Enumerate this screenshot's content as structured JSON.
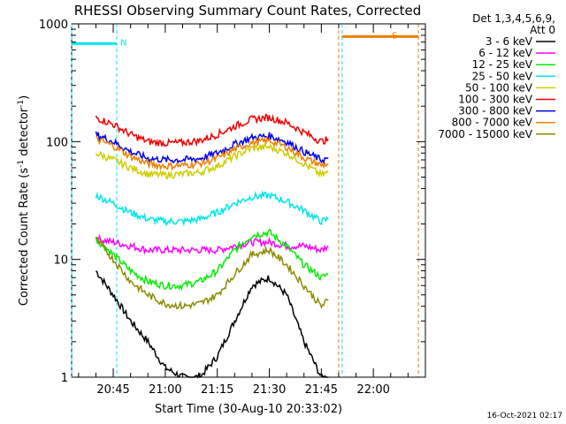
{
  "chart_data": {
    "type": "line",
    "title": "RHESSI Observing Summary Count Rates, Corrected",
    "xlabel": "Start Time (30-Aug-10 20:33:02)",
    "ylabel_main": "Corrected Count Rate (s",
    "ylabel_sup1": "-1",
    "ylabel_mid": " detector",
    "ylabel_sup2": "-1",
    "ylabel_end": ")",
    "yscale": "log",
    "ylim": [
      1,
      1000
    ],
    "xlim": [
      "20:33",
      "22:15"
    ],
    "x_ticks": [
      "20:45",
      "21:00",
      "21:15",
      "21:30",
      "21:45",
      "22:00"
    ],
    "y_ticks": [
      "1",
      "10",
      "100",
      "1000"
    ],
    "legend_header": [
      "Det 1,3,4,5,6,9,",
      "Att 0"
    ],
    "legend_position": "right",
    "timestamp": "16-Oct-2021 02:17",
    "flags": [
      {
        "label": "N",
        "start": "20:33",
        "end": "20:46",
        "color": "#00e5ee",
        "level": 680
      },
      {
        "label": "S",
        "start": "21:51",
        "end": "22:13",
        "color": "#ee7f00",
        "level": 780
      }
    ],
    "flag_lines": [
      {
        "time": "20:33",
        "color": "#00e5ee"
      },
      {
        "time": "20:46",
        "color": "#00e5ee"
      },
      {
        "time": "21:51",
        "color": "#00e5ee"
      },
      {
        "time": "21:50",
        "color": "#ee7f00"
      },
      {
        "time": "22:13",
        "color": "#ee7f00"
      }
    ],
    "series": [
      {
        "name": "3 - 6 keV",
        "color": "#000000",
        "x": [
          "20:40",
          "20:45",
          "20:50",
          "20:55",
          "21:00",
          "21:05",
          "21:10",
          "21:15",
          "21:20",
          "21:25",
          "21:30",
          "21:35",
          "21:40",
          "21:45",
          "21:47"
        ],
        "values": [
          8,
          5,
          3,
          2,
          1.2,
          1,
          1,
          1.5,
          3,
          6,
          7,
          5,
          2,
          1,
          1
        ]
      },
      {
        "name": "6 - 12 keV",
        "color": "#ff00ff",
        "x": [
          "20:40",
          "20:45",
          "20:50",
          "20:55",
          "21:00",
          "21:05",
          "21:10",
          "21:15",
          "21:20",
          "21:25",
          "21:30",
          "21:35",
          "21:40",
          "21:45",
          "21:47"
        ],
        "values": [
          15,
          14,
          13,
          12,
          12,
          12,
          12,
          12,
          13,
          14,
          14,
          13,
          13,
          12,
          13
        ]
      },
      {
        "name": "12 - 25 keV",
        "color": "#00ee00",
        "x": [
          "20:40",
          "20:45",
          "20:50",
          "20:55",
          "21:00",
          "21:05",
          "21:10",
          "21:15",
          "21:20",
          "21:25",
          "21:30",
          "21:35",
          "21:40",
          "21:45",
          "21:47"
        ],
        "values": [
          15,
          11,
          8,
          6.5,
          6,
          6,
          6.5,
          8,
          12,
          16,
          17,
          13,
          9,
          7,
          7.5
        ]
      },
      {
        "name": "25 - 50 keV",
        "color": "#00e5ee",
        "x": [
          "20:40",
          "20:45",
          "20:50",
          "20:55",
          "21:00",
          "21:05",
          "21:10",
          "21:15",
          "21:20",
          "21:25",
          "21:30",
          "21:35",
          "21:40",
          "21:45",
          "21:47"
        ],
        "values": [
          35,
          30,
          25,
          22,
          21,
          21,
          22,
          25,
          30,
          34,
          35,
          31,
          26,
          21,
          22
        ]
      },
      {
        "name": "50 - 100 keV",
        "color": "#cdcd00",
        "x": [
          "20:40",
          "20:45",
          "20:50",
          "20:55",
          "21:00",
          "21:05",
          "21:10",
          "21:15",
          "21:20",
          "21:25",
          "21:30",
          "21:35",
          "21:40",
          "21:45",
          "21:47"
        ],
        "values": [
          80,
          70,
          60,
          53,
          52,
          53,
          55,
          62,
          75,
          88,
          90,
          80,
          65,
          52,
          55
        ]
      },
      {
        "name": "100 - 300 keV",
        "color": "#ee0000",
        "x": [
          "20:40",
          "20:45",
          "20:50",
          "20:55",
          "21:00",
          "21:05",
          "21:10",
          "21:15",
          "21:20",
          "21:25",
          "21:30",
          "21:35",
          "21:40",
          "21:45",
          "21:47"
        ],
        "values": [
          160,
          140,
          115,
          100,
          97,
          98,
          102,
          115,
          135,
          155,
          160,
          145,
          120,
          100,
          105
        ]
      },
      {
        "name": "300 - 800 keV",
        "color": "#0000ee",
        "x": [
          "20:40",
          "20:45",
          "20:50",
          "20:55",
          "21:00",
          "21:05",
          "21:10",
          "21:15",
          "21:20",
          "21:25",
          "21:30",
          "21:35",
          "21:40",
          "21:45",
          "21:47"
        ],
        "values": [
          115,
          100,
          82,
          72,
          70,
          70,
          72,
          80,
          95,
          108,
          112,
          100,
          82,
          70,
          72
        ]
      },
      {
        "name": "800 - 7000 keV",
        "color": "#ee7f00",
        "x": [
          "20:40",
          "20:45",
          "20:50",
          "20:55",
          "21:00",
          "21:05",
          "21:10",
          "21:15",
          "21:20",
          "21:25",
          "21:30",
          "21:35",
          "21:40",
          "21:45",
          "21:47"
        ],
        "values": [
          105,
          92,
          75,
          65,
          62,
          63,
          65,
          72,
          86,
          98,
          102,
          90,
          73,
          63,
          65
        ]
      },
      {
        "name": "7000 - 15000 keV",
        "color": "#8b8b00",
        "x": [
          "20:40",
          "20:45",
          "20:50",
          "20:55",
          "21:00",
          "21:05",
          "21:10",
          "21:15",
          "21:20",
          "21:25",
          "21:30",
          "21:35",
          "21:40",
          "21:45",
          "21:47"
        ],
        "values": [
          15,
          10,
          6.5,
          5,
          4.2,
          4,
          4.2,
          5,
          7.5,
          11,
          12,
          9,
          6,
          4,
          4.5
        ]
      }
    ]
  }
}
